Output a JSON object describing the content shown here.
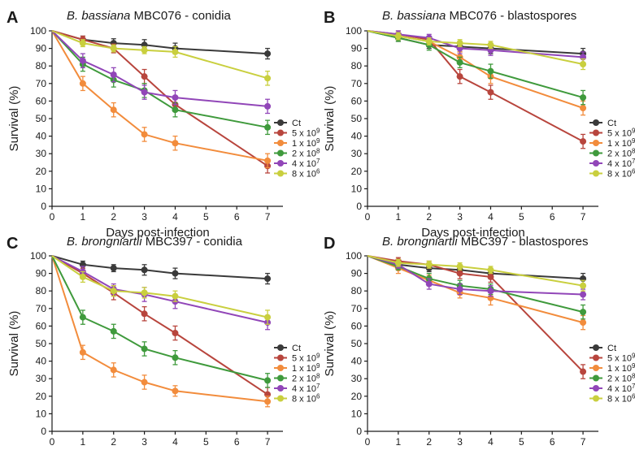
{
  "colors": {
    "ct": "#3a3a3a",
    "d5e9": "#b8453d",
    "d1e9": "#f28c3c",
    "d2e8": "#3f9a3c",
    "d4e7": "#9146b8",
    "d8e6": "#c9cf3e"
  },
  "chart_data": [
    {
      "type": "line",
      "panel": "A",
      "title_italic": "B. bassiana",
      "title_rest": " MBC076 - conidia",
      "xlabel": "Days post-infection",
      "ylabel": "Survival (%)",
      "xlim": [
        0,
        7.5
      ],
      "ylim": [
        0,
        100
      ],
      "xticks": [
        "0",
        "1",
        "2",
        "3",
        "4",
        "5",
        "6",
        "7"
      ],
      "yticks": [
        "0",
        "10",
        "20",
        "30",
        "40",
        "50",
        "60",
        "70",
        "80",
        "90",
        "100"
      ],
      "legend_position": "bottom-right",
      "x": [
        0,
        1,
        2,
        3,
        4,
        7
      ],
      "series": [
        {
          "key": "ct",
          "name": "Ct",
          "exp": "",
          "values": [
            100,
            95,
            93,
            92,
            90,
            87
          ],
          "errors": [
            0,
            2,
            2.5,
            3,
            3,
            3
          ]
        },
        {
          "key": "d5e9",
          "name": "5 x 10",
          "exp": "9",
          "values": [
            100,
            95,
            90,
            74,
            58,
            23
          ],
          "errors": [
            0,
            2,
            2.5,
            4,
            4,
            4
          ]
        },
        {
          "key": "d1e9",
          "name": "1 x 10",
          "exp": "9",
          "values": [
            100,
            70,
            55,
            41,
            36,
            26
          ],
          "errors": [
            0,
            4,
            4,
            4,
            4,
            4
          ]
        },
        {
          "key": "d2e8",
          "name": "2 x 10",
          "exp": "8",
          "values": [
            100,
            81,
            72,
            66,
            55,
            45
          ],
          "errors": [
            0,
            4,
            4,
            4,
            4,
            4
          ]
        },
        {
          "key": "d4e7",
          "name": "4 x 10",
          "exp": "7",
          "values": [
            100,
            83,
            75,
            65,
            62,
            57
          ],
          "errors": [
            0,
            4,
            4,
            4,
            4,
            4
          ]
        },
        {
          "key": "d8e6",
          "name": "8 x 10",
          "exp": "6",
          "values": [
            100,
            93,
            90,
            89,
            88,
            73
          ],
          "errors": [
            0,
            2,
            2,
            2,
            3,
            4
          ]
        }
      ]
    },
    {
      "type": "line",
      "panel": "B",
      "title_italic": "B. bassiana",
      "title_rest": " MBC076 - blastospores",
      "xlabel": "Days post-infection",
      "ylabel": "Survival (%)",
      "xlim": [
        0,
        7.5
      ],
      "ylim": [
        0,
        100
      ],
      "xticks": [
        "0",
        "1",
        "2",
        "3",
        "4",
        "5",
        "6",
        "7"
      ],
      "yticks": [
        "0",
        "10",
        "20",
        "30",
        "40",
        "50",
        "60",
        "70",
        "80",
        "90",
        "100"
      ],
      "legend_position": "bottom-right",
      "x": [
        0,
        1,
        2,
        3,
        4,
        7
      ],
      "series": [
        {
          "key": "ct",
          "name": "Ct",
          "exp": "",
          "values": [
            100,
            96,
            92,
            91,
            90,
            87
          ],
          "errors": [
            0,
            2,
            2,
            3,
            3,
            3
          ]
        },
        {
          "key": "d5e9",
          "name": "5 x 10",
          "exp": "9",
          "values": [
            100,
            98,
            95,
            74,
            65,
            37
          ],
          "errors": [
            0,
            2,
            2,
            4,
            4,
            4
          ]
        },
        {
          "key": "d1e9",
          "name": "1 x 10",
          "exp": "9",
          "values": [
            100,
            97,
            94,
            85,
            74,
            56
          ],
          "errors": [
            0,
            2,
            2,
            3,
            4,
            4
          ]
        },
        {
          "key": "d2e8",
          "name": "2 x 10",
          "exp": "8",
          "values": [
            100,
            96,
            92,
            82,
            77,
            62
          ],
          "errors": [
            0,
            2,
            3,
            3,
            4,
            4
          ]
        },
        {
          "key": "d4e7",
          "name": "4 x 10",
          "exp": "7",
          "values": [
            100,
            98,
            96,
            90,
            89,
            85
          ],
          "errors": [
            0,
            2,
            2,
            3,
            3,
            3
          ]
        },
        {
          "key": "d8e6",
          "name": "8 x 10",
          "exp": "6",
          "values": [
            100,
            97,
            94,
            93,
            92,
            81
          ],
          "errors": [
            0,
            2,
            2,
            2,
            2,
            3
          ]
        }
      ]
    },
    {
      "type": "line",
      "panel": "C",
      "title_italic": "B. brongniartii",
      "title_rest": " MBC397 - conidia",
      "xlabel": "Days post-infection",
      "ylabel": "Survival (%)",
      "xlim": [
        0,
        7.5
      ],
      "ylim": [
        0,
        100
      ],
      "xticks": [
        "0",
        "1",
        "2",
        "3",
        "4",
        "5",
        "6",
        "7"
      ],
      "yticks": [
        "0",
        "10",
        "20",
        "30",
        "40",
        "50",
        "60",
        "70",
        "80",
        "90",
        "100"
      ],
      "legend_position": "bottom-right",
      "x": [
        0,
        1,
        2,
        3,
        4,
        7
      ],
      "series": [
        {
          "key": "ct",
          "name": "Ct",
          "exp": "",
          "values": [
            100,
            95,
            93,
            92,
            90,
            87
          ],
          "errors": [
            0,
            2,
            2,
            3,
            3,
            3
          ]
        },
        {
          "key": "d5e9",
          "name": "5 x 10",
          "exp": "9",
          "values": [
            100,
            90,
            79,
            67,
            56,
            21
          ],
          "errors": [
            0,
            3,
            4,
            4,
            4,
            4
          ]
        },
        {
          "key": "d1e9",
          "name": "1 x 10",
          "exp": "9",
          "values": [
            100,
            45,
            35,
            28,
            23,
            17
          ],
          "errors": [
            0,
            4,
            4,
            4,
            3,
            3
          ]
        },
        {
          "key": "d2e8",
          "name": "2 x 10",
          "exp": "8",
          "values": [
            100,
            65,
            57,
            47,
            42,
            29
          ],
          "errors": [
            0,
            4,
            4,
            4,
            4,
            4
          ]
        },
        {
          "key": "d4e7",
          "name": "4 x 10",
          "exp": "7",
          "values": [
            100,
            91,
            81,
            78,
            74,
            62
          ],
          "errors": [
            0,
            3,
            3,
            4,
            4,
            4
          ]
        },
        {
          "key": "d8e6",
          "name": "8 x 10",
          "exp": "6",
          "values": [
            100,
            88,
            80,
            79,
            77,
            65
          ],
          "errors": [
            0,
            3,
            3,
            3,
            3,
            4
          ]
        }
      ]
    },
    {
      "type": "line",
      "panel": "D",
      "title_italic": "B. brongniartii",
      "title_rest": " MBC397 - blastospores",
      "xlabel": "Days post-infection",
      "ylabel": "Survival (%)",
      "xlim": [
        0,
        7.5
      ],
      "ylim": [
        0,
        100
      ],
      "xticks": [
        "0",
        "1",
        "2",
        "3",
        "4",
        "5",
        "6",
        "7"
      ],
      "yticks": [
        "0",
        "10",
        "20",
        "30",
        "40",
        "50",
        "60",
        "70",
        "80",
        "90",
        "100"
      ],
      "legend_position": "bottom-right",
      "x": [
        0,
        1,
        2,
        3,
        4,
        7
      ],
      "series": [
        {
          "key": "ct",
          "name": "Ct",
          "exp": "",
          "values": [
            100,
            95,
            93,
            92,
            90,
            87
          ],
          "errors": [
            0,
            2,
            2,
            2,
            3,
            3
          ]
        },
        {
          "key": "d5e9",
          "name": "5 x 10",
          "exp": "9",
          "values": [
            100,
            97,
            95,
            90,
            88,
            34
          ],
          "errors": [
            0,
            2,
            2,
            3,
            3,
            4
          ]
        },
        {
          "key": "d1e9",
          "name": "1 x 10",
          "exp": "9",
          "values": [
            100,
            93,
            86,
            79,
            76,
            62
          ],
          "errors": [
            0,
            3,
            3,
            3,
            4,
            4
          ]
        },
        {
          "key": "d2e8",
          "name": "2 x 10",
          "exp": "8",
          "values": [
            100,
            94,
            87,
            83,
            81,
            68
          ],
          "errors": [
            0,
            2,
            3,
            3,
            3,
            4
          ]
        },
        {
          "key": "d4e7",
          "name": "4 x 10",
          "exp": "7",
          "values": [
            100,
            95,
            84,
            81,
            80,
            78
          ],
          "errors": [
            0,
            2,
            3,
            3,
            3,
            3
          ]
        },
        {
          "key": "d8e6",
          "name": "8 x 10",
          "exp": "6",
          "values": [
            100,
            96,
            95,
            94,
            92,
            83
          ],
          "errors": [
            0,
            2,
            2,
            2,
            2,
            3
          ]
        }
      ]
    }
  ]
}
